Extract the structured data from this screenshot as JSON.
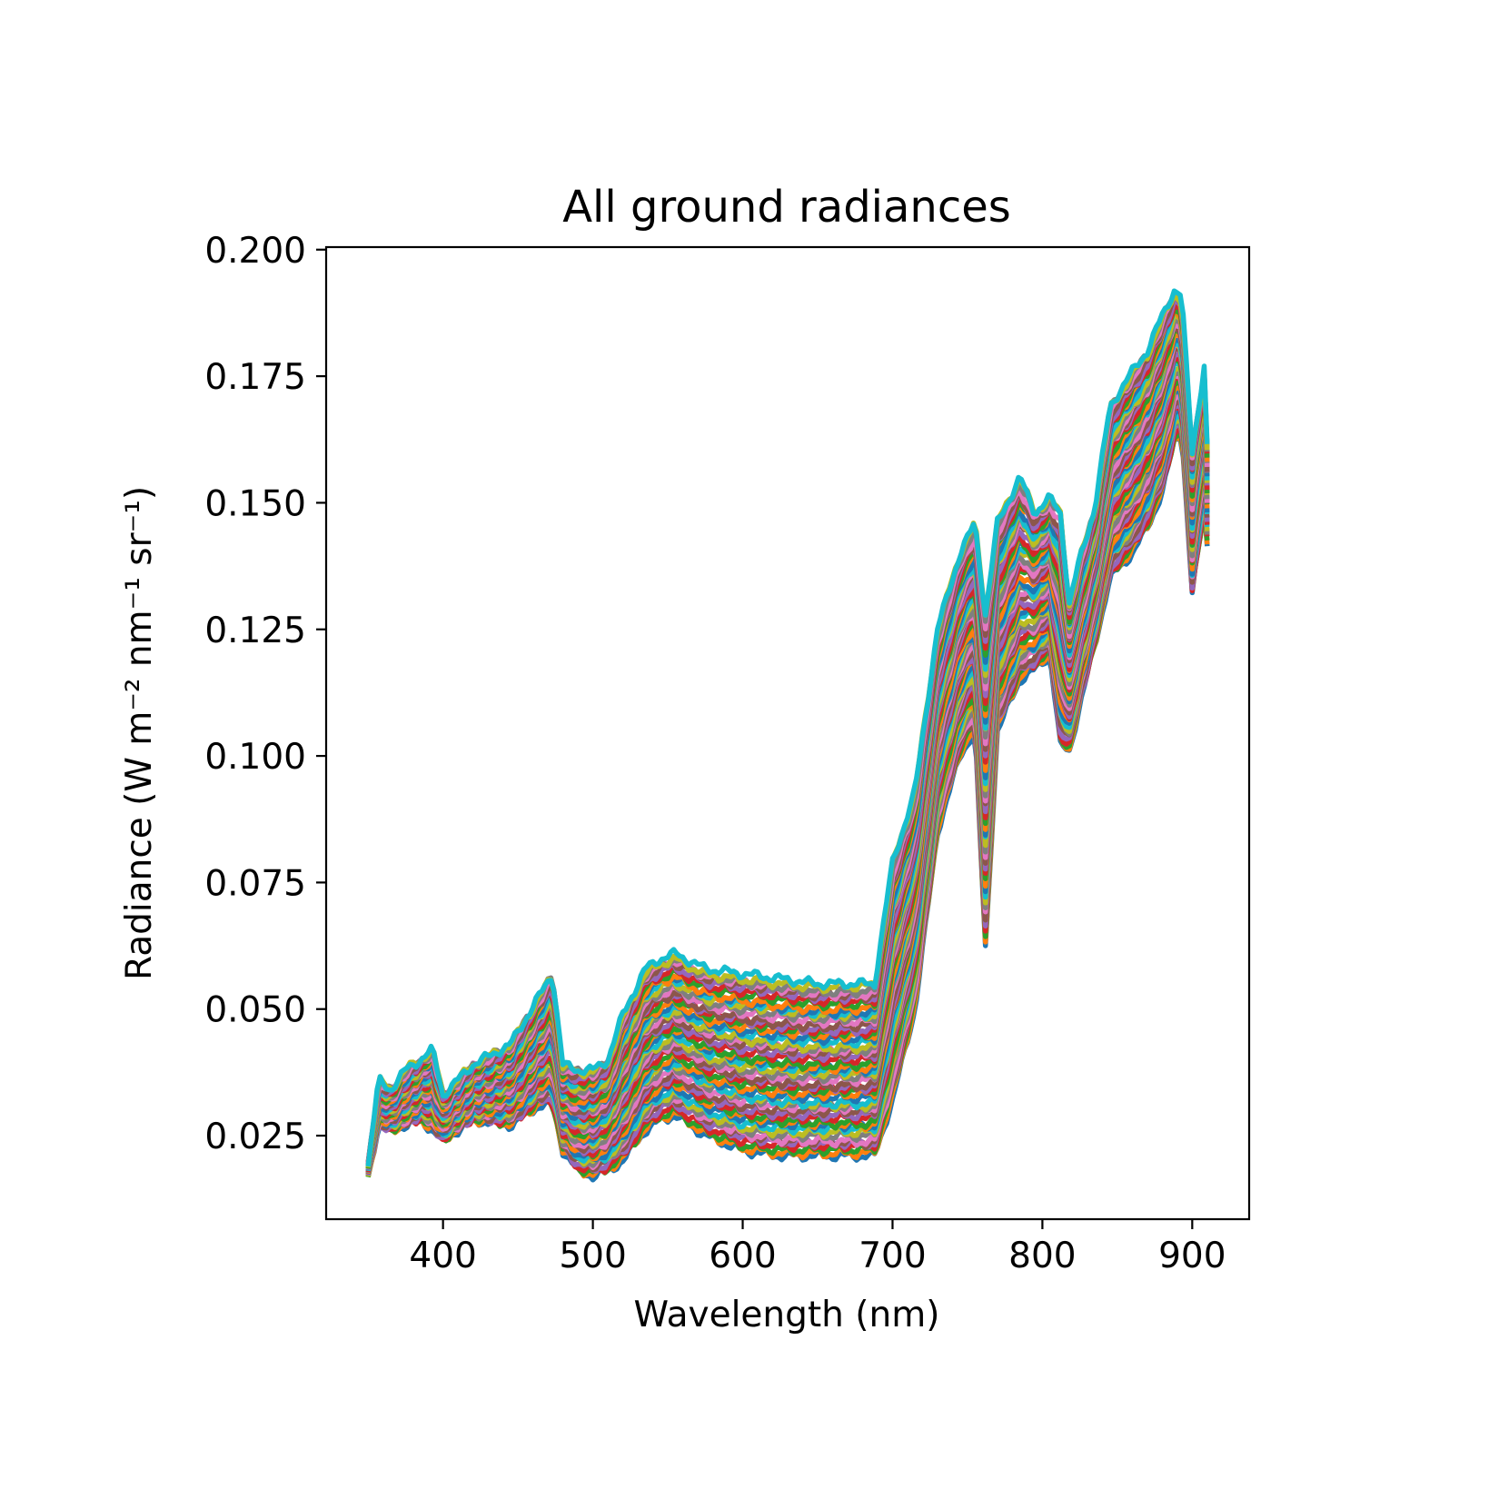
{
  "chart_data": {
    "type": "line",
    "title": "All ground radiances",
    "xlabel": "Wavelength (nm)",
    "ylabel": "Radiance (W m⁻² nm⁻¹ sr⁻¹)",
    "xlim": [
      322,
      938
    ],
    "ylim": [
      0.0085,
      0.2005
    ],
    "xticks": [
      400,
      500,
      600,
      700,
      800,
      900
    ],
    "xtick_labels": [
      "400",
      "500",
      "600",
      "700",
      "800",
      "900"
    ],
    "yticks": [
      0.025,
      0.05,
      0.075,
      0.1,
      0.125,
      0.15,
      0.175,
      0.2
    ],
    "ytick_labels": [
      "0.025",
      "0.050",
      "0.075",
      "0.100",
      "0.125",
      "0.150",
      "0.175",
      "0.200"
    ],
    "grid": false,
    "legend": "none",
    "series_count_estimate": 60,
    "series_colors": [
      "#1f77b4",
      "#ff7f0e",
      "#2ca02c",
      "#d62728",
      "#9467bd",
      "#8c564b",
      "#e377c2",
      "#7f7f7f",
      "#bcbd22",
      "#17becf"
    ],
    "envelope": {
      "x": [
        350,
        357,
        365,
        375,
        385,
        393,
        400,
        420,
        445,
        465,
        473,
        480,
        490,
        500,
        510,
        520,
        535,
        545,
        555,
        575,
        600,
        625,
        650,
        670,
        688,
        700,
        715,
        730,
        745,
        755,
        762,
        770,
        785,
        795,
        805,
        812,
        818,
        825,
        835,
        845,
        860,
        870,
        880,
        888,
        893,
        900,
        908,
        911
      ],
      "upper": [
        0.019,
        0.036,
        0.034,
        0.038,
        0.04,
        0.042,
        0.033,
        0.039,
        0.043,
        0.053,
        0.057,
        0.039,
        0.038,
        0.038,
        0.04,
        0.049,
        0.058,
        0.06,
        0.061,
        0.058,
        0.057,
        0.056,
        0.055,
        0.055,
        0.055,
        0.079,
        0.093,
        0.125,
        0.14,
        0.146,
        0.128,
        0.146,
        0.155,
        0.148,
        0.151,
        0.148,
        0.13,
        0.139,
        0.149,
        0.169,
        0.176,
        0.18,
        0.187,
        0.192,
        0.191,
        0.16,
        0.177,
        0.153
      ],
      "lower": [
        0.017,
        0.027,
        0.026,
        0.027,
        0.028,
        0.026,
        0.024,
        0.028,
        0.027,
        0.031,
        0.031,
        0.022,
        0.018,
        0.017,
        0.018,
        0.02,
        0.026,
        0.028,
        0.029,
        0.025,
        0.022,
        0.021,
        0.021,
        0.021,
        0.021,
        0.032,
        0.05,
        0.085,
        0.1,
        0.105,
        0.062,
        0.105,
        0.115,
        0.117,
        0.12,
        0.102,
        0.101,
        0.11,
        0.122,
        0.135,
        0.14,
        0.145,
        0.152,
        0.162,
        0.164,
        0.132,
        0.149,
        0.138
      ]
    }
  }
}
